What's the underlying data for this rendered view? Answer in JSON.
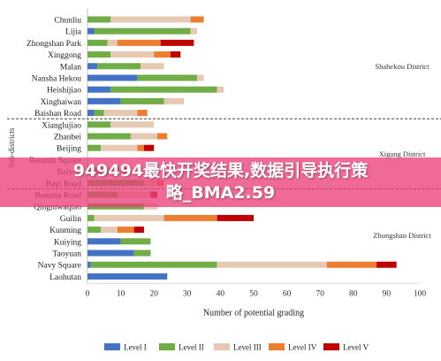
{
  "chart_data": {
    "type": "bar",
    "orientation": "horizontal",
    "stacked": true,
    "categories": [
      "Chunliu",
      "Lijia",
      "Zhongshan Park",
      "Xinggong",
      "Malan",
      "Nansha Hekou",
      "Heishijiao",
      "Xinghaiwan",
      "Baishan Road",
      "Xianglujiao",
      "Zhanbei",
      "Beijing",
      "Renmin Square",
      "Baiyun",
      "Bayi Road",
      "Renmin Road",
      "Qingniwaqiao",
      "Guilin",
      "Kunming",
      "Kuiying",
      "Taoyuan",
      "Navy Square",
      "Laohutan"
    ],
    "series": [
      {
        "name": "Level I",
        "color": "#4472c4",
        "values": [
          0,
          2,
          0,
          0,
          3,
          15,
          7,
          10,
          2,
          0,
          0,
          0,
          0,
          0,
          0,
          0,
          0,
          0,
          0,
          10,
          14,
          1,
          24
        ]
      },
      {
        "name": "Level II",
        "color": "#70ad47",
        "values": [
          7,
          29,
          6,
          7,
          13,
          18,
          32,
          13,
          3,
          7,
          13,
          4,
          0,
          6,
          17,
          9,
          17,
          2,
          4,
          9,
          5,
          38,
          0
        ]
      },
      {
        "name": "Level III",
        "color": "#e7c9b3",
        "values": [
          24,
          2,
          3,
          13,
          7,
          2,
          2,
          6,
          10,
          13,
          8,
          11,
          0,
          5,
          4,
          10,
          4,
          21,
          5,
          0,
          0,
          33,
          0
        ]
      },
      {
        "name": "Level IV",
        "color": "#ed7d31",
        "values": [
          4,
          0,
          13,
          5,
          0,
          0,
          0,
          0,
          3,
          0,
          3,
          2,
          0,
          0,
          2,
          0,
          0,
          16,
          5,
          0,
          0,
          15,
          0
        ]
      },
      {
        "name": "Level V",
        "color": "#c00000",
        "values": [
          0,
          0,
          10,
          3,
          0,
          0,
          0,
          0,
          0,
          0,
          0,
          3,
          0,
          1,
          0,
          2,
          0,
          11,
          3,
          0,
          0,
          6,
          0
        ]
      }
    ],
    "districts": [
      {
        "name": "Shahekou District",
        "from": 0,
        "to": 8
      },
      {
        "name": "Xigang District",
        "from": 9,
        "to": 14
      },
      {
        "name": "Zhongshan District",
        "from": 15,
        "to": 22
      }
    ],
    "xlim": [
      0,
      100
    ],
    "xticks": [
      0,
      10,
      20,
      30,
      40,
      50,
      60,
      70,
      80,
      90,
      100
    ],
    "xlabel": "Number of potential grading",
    "ylabel": "Sub-districts",
    "legend_position": "bottom",
    "grid": false
  },
  "banner": {
    "line1": "949494最快开奖结果,数据引导执行策",
    "line2": "略_BMA2.59"
  }
}
